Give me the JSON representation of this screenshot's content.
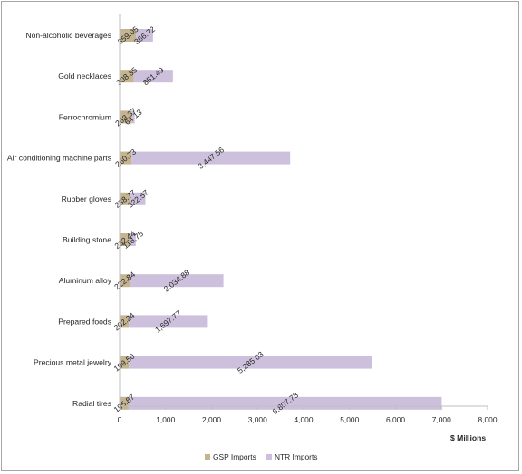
{
  "chart_data": {
    "type": "bar",
    "orientation": "horizontal",
    "stacked": true,
    "categories": [
      "Non-alcoholic beverages",
      "Gold necklaces",
      "Ferrochromium",
      "Air conditioning machine parts",
      "Rubber gloves",
      "Building stone",
      "Aluminum alloy",
      "Prepared foods",
      "Precious metal jewelry",
      "Radial tires"
    ],
    "series": [
      {
        "name": "GSP Imports",
        "color": "#c4b48f",
        "values": [
          359.05,
          308.35,
          263.37,
          260.73,
          238.77,
          232.44,
          222.84,
          202.24,
          199.5,
          195.87
        ],
        "labels": [
          "359.05",
          "308.35",
          "263.37",
          "260.73",
          "238.77",
          "232.44",
          "222.84",
          "202.24",
          "199.50",
          "195.87"
        ]
      },
      {
        "name": "NTR Imports",
        "color": "#ccc0dc",
        "values": [
          366.72,
          851.49,
          64.13,
          3447.56,
          322.57,
          118.75,
          2034.88,
          1697.77,
          5285.03,
          6807.78
        ],
        "labels": [
          "366.72",
          "851.49",
          "64.13",
          "3,447.56",
          "322.57",
          "118.75",
          "2,034.88",
          "1,697.77",
          "5,285.03",
          "6,807.78"
        ]
      }
    ],
    "x_ticks": [
      "0",
      "1,000",
      "2,000",
      "3,000",
      "4,000",
      "5,000",
      "6,000",
      "7,000",
      "8,000"
    ],
    "xlim": [
      0,
      8000
    ],
    "xlabel": "$ Millions",
    "ylabel": "",
    "title": "",
    "grid": false,
    "legend_position": "bottom"
  }
}
